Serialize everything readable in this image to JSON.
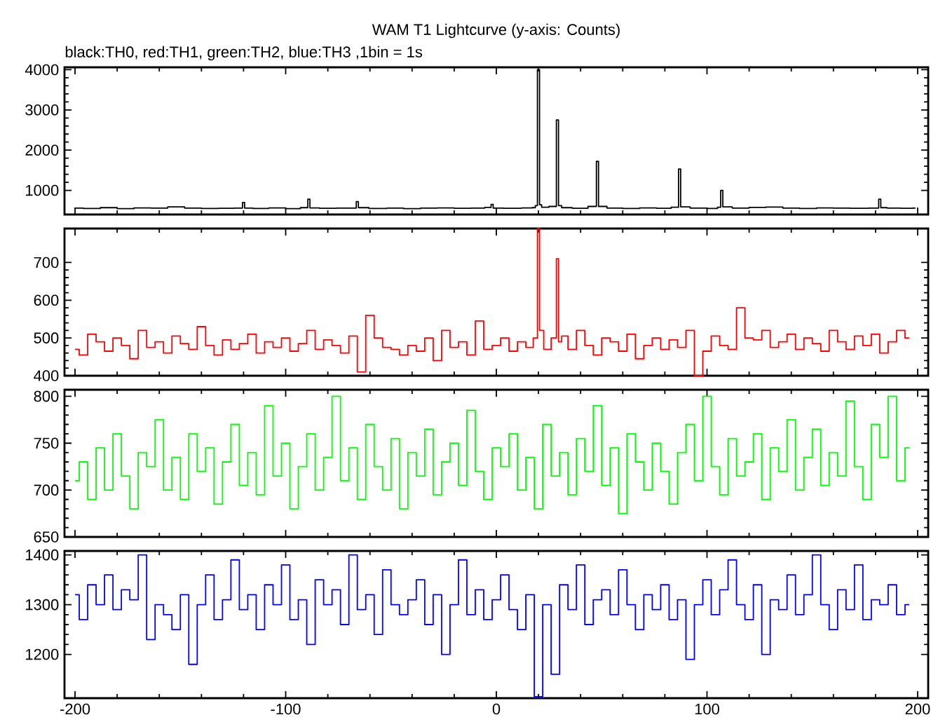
{
  "chart_data": [
    {
      "type": "step",
      "title": "WAM T1 Lightcurve (y-axis: Counts)",
      "subtitle": "black:TH0, red:TH1, green:TH2, blue:TH3 ,1bin = 1s",
      "xlim": [
        -205,
        205
      ],
      "xticks": [
        -200,
        -100,
        0,
        100,
        200
      ],
      "ylim": [
        400,
        4060
      ],
      "yticks": [
        1000,
        2000,
        3000,
        4000
      ],
      "tick_labels": "y",
      "x": [
        -200,
        -192,
        -184,
        -176,
        -168,
        -160,
        -152,
        -144,
        -136,
        -128,
        -121,
        -120,
        -119,
        -112,
        -104,
        -96,
        -90,
        -89,
        -88,
        -80,
        -72,
        -67,
        -66,
        -65,
        -56,
        -48,
        -40,
        -32,
        -24,
        -16,
        -8,
        -3,
        -2,
        -1,
        8,
        16,
        18,
        19,
        20,
        21,
        22,
        28,
        29,
        30,
        32,
        40,
        47,
        48,
        49,
        56,
        64,
        72,
        80,
        86,
        87,
        88,
        96,
        104,
        106,
        107,
        108,
        116,
        124,
        132,
        140,
        148,
        156,
        164,
        172,
        181,
        182,
        183,
        188,
        196,
        199
      ],
      "series": [
        {
          "color": "#000000",
          "values": [
            560,
            550,
            570,
            545,
            565,
            560,
            590,
            560,
            550,
            555,
            560,
            700,
            560,
            550,
            565,
            545,
            570,
            780,
            565,
            555,
            560,
            560,
            720,
            570,
            550,
            560,
            545,
            560,
            565,
            555,
            560,
            575,
            650,
            560,
            555,
            565,
            570,
            620,
            4000,
            640,
            580,
            600,
            2750,
            620,
            570,
            555,
            600,
            1720,
            600,
            560,
            550,
            565,
            555,
            580,
            1530,
            590,
            560,
            550,
            580,
            1000,
            590,
            560,
            575,
            585,
            560,
            550,
            565,
            560,
            555,
            560,
            780,
            570,
            560,
            555,
            560
          ]
        }
      ]
    },
    {
      "type": "step",
      "xlim": [
        -205,
        205
      ],
      "xticks": [
        -200,
        -100,
        0,
        100,
        200
      ],
      "ylim": [
        400,
        790
      ],
      "yticks": [
        400,
        500,
        600,
        700
      ],
      "tick_labels": "y",
      "x": [
        -200,
        -196,
        -192,
        -188,
        -184,
        -180,
        -176,
        -172,
        -168,
        -164,
        -160,
        -156,
        -152,
        -148,
        -144,
        -140,
        -136,
        -132,
        -128,
        -124,
        -120,
        -116,
        -112,
        -108,
        -104,
        -100,
        -96,
        -92,
        -88,
        -84,
        -80,
        -76,
        -72,
        -68,
        -64,
        -60,
        -56,
        -52,
        -48,
        -44,
        -40,
        -36,
        -32,
        -28,
        -24,
        -20,
        -16,
        -12,
        -8,
        -4,
        0,
        4,
        8,
        12,
        16,
        19,
        20,
        21,
        24,
        28,
        29,
        30,
        32,
        36,
        40,
        44,
        48,
        52,
        56,
        60,
        64,
        68,
        72,
        76,
        80,
        84,
        88,
        92,
        96,
        100,
        104,
        108,
        112,
        116,
        120,
        124,
        128,
        132,
        136,
        140,
        144,
        148,
        152,
        156,
        160,
        164,
        168,
        172,
        176,
        180,
        184,
        188,
        192,
        196
      ],
      "series": [
        {
          "color": "#ff0000",
          "values": [
            470,
            455,
            510,
            490,
            465,
            500,
            480,
            445,
            520,
            475,
            490,
            460,
            505,
            485,
            470,
            530,
            480,
            455,
            495,
            470,
            485,
            510,
            460,
            490,
            475,
            500,
            465,
            485,
            520,
            470,
            495,
            480,
            460,
            505,
            410,
            560,
            500,
            475,
            470,
            455,
            480,
            465,
            500,
            440,
            520,
            475,
            490,
            455,
            545,
            470,
            480,
            500,
            465,
            490,
            475,
            500,
            790,
            520,
            470,
            500,
            710,
            490,
            505,
            470,
            520,
            480,
            455,
            500,
            490,
            465,
            510,
            445,
            480,
            500,
            470,
            495,
            475,
            520,
            400,
            465,
            505,
            480,
            470,
            580,
            500,
            495,
            520,
            475,
            490,
            510,
            470,
            500,
            485,
            465,
            520,
            490,
            470,
            505,
            480,
            510,
            460,
            490,
            520,
            500
          ]
        }
      ]
    },
    {
      "type": "step",
      "xlim": [
        -205,
        205
      ],
      "xticks": [
        -200,
        -100,
        0,
        100,
        200
      ],
      "ylim": [
        650,
        807
      ],
      "yticks": [
        650,
        700,
        750,
        800
      ],
      "tick_labels": "y",
      "x": [
        -200,
        -196,
        -192,
        -188,
        -184,
        -180,
        -176,
        -172,
        -168,
        -164,
        -160,
        -156,
        -152,
        -148,
        -144,
        -140,
        -136,
        -132,
        -128,
        -124,
        -120,
        -116,
        -112,
        -108,
        -104,
        -100,
        -96,
        -92,
        -88,
        -84,
        -80,
        -76,
        -72,
        -68,
        -64,
        -60,
        -56,
        -52,
        -48,
        -44,
        -40,
        -36,
        -32,
        -28,
        -24,
        -20,
        -16,
        -12,
        -8,
        -4,
        0,
        4,
        8,
        12,
        16,
        20,
        24,
        28,
        32,
        36,
        40,
        44,
        48,
        52,
        56,
        60,
        64,
        68,
        72,
        76,
        80,
        84,
        88,
        92,
        96,
        100,
        104,
        108,
        112,
        116,
        120,
        124,
        128,
        132,
        136,
        140,
        144,
        148,
        152,
        156,
        160,
        164,
        168,
        172,
        176,
        180,
        184,
        188,
        192,
        196
      ],
      "series": [
        {
          "color": "#00ff00",
          "values": [
            710,
            730,
            690,
            745,
            700,
            760,
            715,
            680,
            740,
            725,
            775,
            700,
            735,
            690,
            760,
            720,
            745,
            685,
            730,
            770,
            705,
            740,
            695,
            790,
            715,
            750,
            680,
            725,
            760,
            700,
            735,
            800,
            710,
            745,
            690,
            770,
            725,
            700,
            755,
            680,
            740,
            715,
            765,
            695,
            730,
            750,
            705,
            785,
            720,
            690,
            745,
            725,
            760,
            700,
            735,
            680,
            770,
            715,
            740,
            695,
            755,
            720,
            790,
            705,
            745,
            675,
            760,
            730,
            700,
            750,
            720,
            685,
            740,
            770,
            710,
            800,
            725,
            695,
            755,
            715,
            730,
            760,
            690,
            745,
            720,
            775,
            700,
            735,
            765,
            705,
            740,
            715,
            795,
            725,
            690,
            770,
            735,
            800,
            710,
            745
          ]
        }
      ]
    },
    {
      "type": "step",
      "xlim": [
        -205,
        205
      ],
      "xticks": [
        -200,
        -100,
        0,
        100,
        200
      ],
      "ylim": [
        1112,
        1408
      ],
      "yticks": [
        1200,
        1300,
        1400
      ],
      "x": [
        -200,
        -196,
        -192,
        -188,
        -184,
        -180,
        -176,
        -172,
        -168,
        -164,
        -160,
        -156,
        -152,
        -148,
        -144,
        -140,
        -136,
        -132,
        -128,
        -124,
        -120,
        -116,
        -112,
        -108,
        -104,
        -100,
        -96,
        -92,
        -88,
        -84,
        -80,
        -76,
        -72,
        -68,
        -64,
        -60,
        -56,
        -52,
        -48,
        -44,
        -40,
        -36,
        -32,
        -28,
        -24,
        -20,
        -16,
        -12,
        -8,
        -4,
        0,
        4,
        8,
        12,
        16,
        20,
        24,
        28,
        32,
        36,
        40,
        44,
        48,
        52,
        56,
        60,
        64,
        68,
        72,
        76,
        80,
        84,
        88,
        92,
        96,
        100,
        104,
        108,
        112,
        116,
        120,
        124,
        128,
        132,
        136,
        140,
        144,
        148,
        152,
        156,
        160,
        164,
        168,
        172,
        176,
        180,
        184,
        188,
        192,
        196
      ],
      "series": [
        {
          "color": "#0000ff",
          "values": [
            1320,
            1270,
            1340,
            1300,
            1360,
            1290,
            1330,
            1310,
            1400,
            1230,
            1300,
            1280,
            1250,
            1320,
            1180,
            1300,
            1360,
            1270,
            1310,
            1390,
            1290,
            1320,
            1250,
            1340,
            1300,
            1380,
            1270,
            1310,
            1220,
            1350,
            1300,
            1330,
            1260,
            1400,
            1290,
            1320,
            1240,
            1370,
            1300,
            1280,
            1310,
            1350,
            1260,
            1320,
            1200,
            1300,
            1390,
            1280,
            1330,
            1270,
            1310,
            1360,
            1290,
            1250,
            1320,
            1115,
            1300,
            1160,
            1340,
            1290,
            1380,
            1260,
            1310,
            1330,
            1280,
            1370,
            1300,
            1250,
            1320,
            1290,
            1340,
            1270,
            1310,
            1190,
            1300,
            1350,
            1280,
            1330,
            1390,
            1300,
            1270,
            1340,
            1200,
            1310,
            1290,
            1360,
            1280,
            1320,
            1400,
            1300,
            1250,
            1330,
            1290,
            1380,
            1270,
            1310,
            1300,
            1340,
            1280,
            1300
          ]
        }
      ]
    }
  ]
}
